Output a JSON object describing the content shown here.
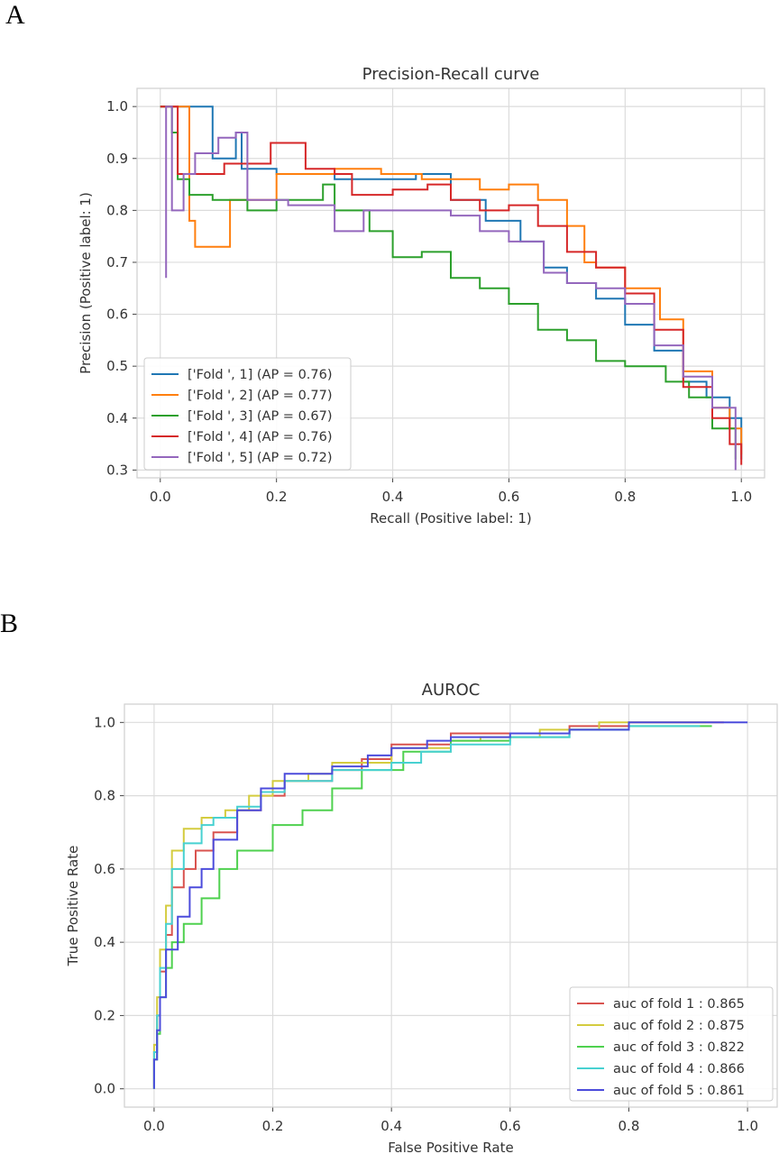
{
  "panel_labels": {
    "a": "A",
    "b": "B"
  },
  "chart_data": [
    {
      "type": "line",
      "title": "Precision-Recall curve",
      "xlabel": "Recall (Positive label: 1)",
      "ylabel": "Precision (Positive label: 1)",
      "xlim": [
        -0.04,
        1.04
      ],
      "ylim": [
        0.285,
        1.035
      ],
      "xticks": [
        "0.0",
        "0.2",
        "0.4",
        "0.6",
        "0.8",
        "1.0"
      ],
      "yticks": [
        "0.3",
        "0.4",
        "0.5",
        "0.6",
        "0.7",
        "0.8",
        "0.9",
        "1.0"
      ],
      "grid": true,
      "legend_position": "lower-left",
      "series": [
        {
          "name": "['Fold ', 1] (AP = 0.76)",
          "color": "#1f77b4",
          "x": [
            0.0,
            0.09,
            0.09,
            0.13,
            0.14,
            0.2,
            0.3,
            0.4,
            0.44,
            0.5,
            0.56,
            0.62,
            0.66,
            0.7,
            0.75,
            0.8,
            0.85,
            0.9,
            0.94,
            0.98,
            1.0
          ],
          "y": [
            1.0,
            1.0,
            0.9,
            0.95,
            0.88,
            0.87,
            0.86,
            0.86,
            0.87,
            0.82,
            0.78,
            0.74,
            0.69,
            0.66,
            0.63,
            0.58,
            0.53,
            0.47,
            0.44,
            0.4,
            0.32
          ]
        },
        {
          "name": "['Fold ', 2] (AP = 0.77)",
          "color": "#ff7f0e",
          "x": [
            0.0,
            0.05,
            0.05,
            0.06,
            0.12,
            0.2,
            0.3,
            0.38,
            0.45,
            0.55,
            0.6,
            0.65,
            0.7,
            0.73,
            0.75,
            0.8,
            0.86,
            0.9,
            0.95,
            0.98,
            1.0
          ],
          "y": [
            1.0,
            1.0,
            0.78,
            0.73,
            0.82,
            0.87,
            0.88,
            0.87,
            0.86,
            0.84,
            0.85,
            0.82,
            0.77,
            0.7,
            0.69,
            0.65,
            0.59,
            0.49,
            0.42,
            0.38,
            0.33
          ]
        },
        {
          "name": "['Fold ', 3] (AP = 0.67)",
          "color": "#2ca02c",
          "x": [
            0.0,
            0.02,
            0.03,
            0.05,
            0.09,
            0.15,
            0.2,
            0.28,
            0.3,
            0.36,
            0.4,
            0.45,
            0.5,
            0.55,
            0.6,
            0.65,
            0.7,
            0.75,
            0.8,
            0.87,
            0.91,
            0.95,
            0.99
          ],
          "y": [
            1.0,
            0.95,
            0.86,
            0.83,
            0.82,
            0.8,
            0.82,
            0.85,
            0.8,
            0.76,
            0.71,
            0.72,
            0.67,
            0.65,
            0.62,
            0.57,
            0.55,
            0.51,
            0.5,
            0.47,
            0.44,
            0.38,
            0.32
          ]
        },
        {
          "name": "['Fold ', 4] (AP = 0.76)",
          "color": "#d62728",
          "x": [
            0.0,
            0.03,
            0.03,
            0.05,
            0.11,
            0.19,
            0.25,
            0.3,
            0.33,
            0.4,
            0.46,
            0.5,
            0.55,
            0.6,
            0.65,
            0.7,
            0.75,
            0.8,
            0.85,
            0.9,
            0.95,
            0.98,
            1.0
          ],
          "y": [
            1.0,
            1.0,
            0.87,
            0.87,
            0.89,
            0.93,
            0.88,
            0.87,
            0.83,
            0.84,
            0.85,
            0.82,
            0.8,
            0.81,
            0.77,
            0.72,
            0.69,
            0.64,
            0.57,
            0.46,
            0.4,
            0.35,
            0.31
          ]
        },
        {
          "name": "['Fold ', 5] (AP = 0.72)",
          "color": "#9467bd",
          "x": [
            0.01,
            0.01,
            0.02,
            0.04,
            0.06,
            0.1,
            0.13,
            0.15,
            0.17,
            0.22,
            0.3,
            0.35,
            0.42,
            0.5,
            0.55,
            0.6,
            0.66,
            0.7,
            0.75,
            0.8,
            0.85,
            0.9,
            0.95,
            0.99
          ],
          "y": [
            0.67,
            1.0,
            0.8,
            0.87,
            0.91,
            0.94,
            0.95,
            0.82,
            0.82,
            0.81,
            0.76,
            0.8,
            0.8,
            0.79,
            0.76,
            0.74,
            0.68,
            0.66,
            0.65,
            0.62,
            0.54,
            0.48,
            0.42,
            0.3
          ]
        }
      ]
    },
    {
      "type": "line",
      "title": "AUROC",
      "xlabel": "False Positive Rate",
      "ylabel": "True Positive Rate",
      "xlim": [
        -0.05,
        1.05
      ],
      "ylim": [
        -0.05,
        1.05
      ],
      "xticks": [
        "0.0",
        "0.2",
        "0.4",
        "0.6",
        "0.8",
        "1.0"
      ],
      "yticks": [
        "0.0",
        "0.2",
        "0.4",
        "0.6",
        "0.8",
        "1.0"
      ],
      "grid": true,
      "legend_position": "lower-right",
      "series": [
        {
          "name": "auc of fold 1 : 0.865",
          "color": "#d9534f",
          "x": [
            0.0,
            0.005,
            0.01,
            0.02,
            0.03,
            0.05,
            0.07,
            0.1,
            0.14,
            0.18,
            0.22,
            0.3,
            0.35,
            0.4,
            0.5,
            0.6,
            0.7,
            0.8,
            0.87,
            0.96
          ],
          "y": [
            0.0,
            0.1,
            0.2,
            0.32,
            0.42,
            0.55,
            0.6,
            0.65,
            0.7,
            0.76,
            0.8,
            0.84,
            0.87,
            0.9,
            0.94,
            0.97,
            0.97,
            0.99,
            1.0,
            1.0
          ]
        },
        {
          "name": "auc of fold 2 : 0.875",
          "color": "#d4cc3f",
          "x": [
            0.0,
            0.005,
            0.01,
            0.02,
            0.03,
            0.05,
            0.08,
            0.12,
            0.16,
            0.2,
            0.26,
            0.3,
            0.4,
            0.5,
            0.55,
            0.65,
            0.75,
            0.85,
            0.93
          ],
          "y": [
            0.0,
            0.12,
            0.25,
            0.38,
            0.5,
            0.65,
            0.71,
            0.74,
            0.76,
            0.8,
            0.84,
            0.86,
            0.89,
            0.93,
            0.95,
            0.96,
            0.98,
            1.0,
            1.0
          ]
        },
        {
          "name": "auc of fold 3 : 0.822",
          "color": "#4fd14f",
          "x": [
            0.0,
            0.005,
            0.01,
            0.02,
            0.03,
            0.05,
            0.08,
            0.11,
            0.14,
            0.2,
            0.25,
            0.3,
            0.35,
            0.42,
            0.5,
            0.6,
            0.7,
            0.8,
            0.9,
            0.94
          ],
          "y": [
            0.0,
            0.08,
            0.15,
            0.25,
            0.33,
            0.4,
            0.45,
            0.52,
            0.6,
            0.65,
            0.72,
            0.76,
            0.82,
            0.87,
            0.92,
            0.95,
            0.96,
            0.98,
            0.99,
            0.99
          ]
        },
        {
          "name": "auc of fold 4 : 0.866",
          "color": "#48d1d1",
          "x": [
            0.0,
            0.005,
            0.01,
            0.02,
            0.03,
            0.05,
            0.08,
            0.1,
            0.14,
            0.18,
            0.22,
            0.3,
            0.4,
            0.45,
            0.5,
            0.6,
            0.7,
            0.8,
            0.9,
            0.92
          ],
          "y": [
            0.0,
            0.1,
            0.2,
            0.33,
            0.45,
            0.6,
            0.67,
            0.72,
            0.74,
            0.77,
            0.81,
            0.84,
            0.87,
            0.89,
            0.92,
            0.94,
            0.96,
            0.98,
            0.99,
            0.99
          ]
        },
        {
          "name": "auc of fold 5 : 0.861",
          "color": "#4c4cdc",
          "x": [
            0.0,
            0.005,
            0.01,
            0.02,
            0.04,
            0.06,
            0.08,
            0.1,
            0.14,
            0.18,
            0.22,
            0.3,
            0.36,
            0.4,
            0.46,
            0.5,
            0.6,
            0.7,
            0.8,
            0.85,
            0.9,
            1.0
          ],
          "y": [
            0.0,
            0.08,
            0.16,
            0.25,
            0.38,
            0.47,
            0.55,
            0.6,
            0.68,
            0.76,
            0.82,
            0.86,
            0.88,
            0.91,
            0.93,
            0.95,
            0.96,
            0.97,
            0.98,
            1.0,
            1.0,
            1.0
          ]
        }
      ]
    }
  ]
}
